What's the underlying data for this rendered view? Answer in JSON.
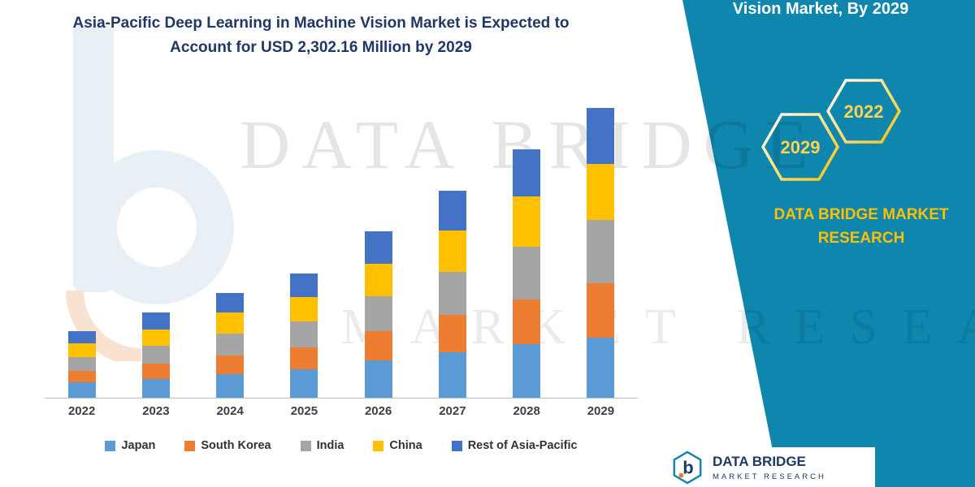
{
  "title": {
    "line1": "Asia-Pacific Deep Learning in Machine Vision Market is Expected to",
    "line2": "Account for USD 2,302.16 Million by 2029"
  },
  "watermark": {
    "line1": "DATA BRIDGE",
    "line2": "MARKET RESEARCH"
  },
  "side_panel": {
    "heading": "Vision Market, By 2029",
    "hexagons": [
      "2029",
      "2022"
    ],
    "brand_line1": "DATA BRIDGE MARKET",
    "brand_line2": "RESEARCH",
    "accent_color": "#FFC000",
    "background_color": "#0E86AE"
  },
  "footer_logo": {
    "name": "DATA BRIDGE",
    "subtitle": "MARKET RESEARCH"
  },
  "chart_data": {
    "type": "bar",
    "stacked": true,
    "title": "Asia-Pacific Deep Learning in Machine Vision Market is Expected to Account for USD 2,302.16 Million by 2029",
    "unit": "USD Million",
    "categories": [
      "2022",
      "2023",
      "2024",
      "2025",
      "2026",
      "2027",
      "2028",
      "2029"
    ],
    "series": [
      {
        "name": "Japan",
        "color": "#5B9BD5",
        "values": [
          120,
          150,
          185,
          225,
          295,
          360,
          425,
          480
        ]
      },
      {
        "name": "South Korea",
        "color": "#ED7D31",
        "values": [
          95,
          120,
          150,
          175,
          235,
          295,
          355,
          430
        ]
      },
      {
        "name": "India",
        "color": "#A5A5A5",
        "values": [
          110,
          140,
          175,
          205,
          275,
          345,
          420,
          500
        ]
      },
      {
        "name": "China",
        "color": "#FFC000",
        "values": [
          105,
          135,
          165,
          195,
          260,
          330,
          400,
          450
        ]
      },
      {
        "name": "Rest of Asia-Pacific",
        "color": "#4472C4",
        "values": [
          100,
          130,
          160,
          190,
          255,
          315,
          375,
          442.16
        ]
      }
    ],
    "ylim": [
      0,
      2400
    ],
    "grid": false,
    "legend_position": "bottom"
  }
}
